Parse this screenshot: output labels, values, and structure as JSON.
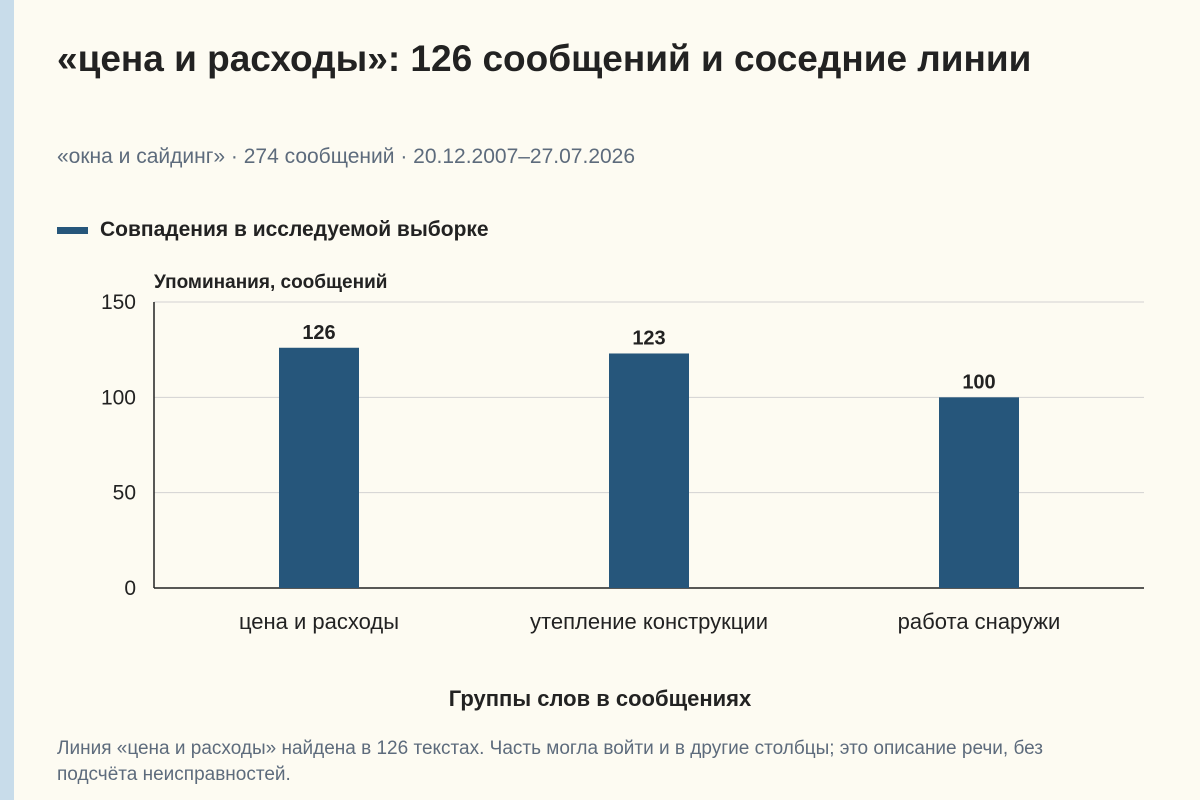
{
  "header": {
    "title": "«цена и расходы»: 126 сообщений и соседние линии",
    "subtitle": "«окна и сайдинг» · 274 сообщений · 20.12.2007–27.07.2026"
  },
  "colors": {
    "bar": "#26567b",
    "background": "#fdfbf2",
    "accent_strip": "#c8dcea"
  },
  "chart_data": {
    "type": "bar",
    "categories": [
      "цена и расходы",
      "утепление конструкции",
      "работа снаружи"
    ],
    "series": [
      {
        "name": "Совпадения в исследуемой выборке",
        "values": [
          126,
          123,
          100
        ]
      }
    ],
    "ylabel": "Упоминания, сообщений",
    "xlabel": "Группы слов в сообщениях",
    "ylim": [
      0,
      150
    ],
    "yticks": [
      0,
      50,
      100,
      150
    ],
    "grid": true,
    "legend": "top-left"
  },
  "note": "Линия «цена и расходы» найдена в 126 текстах. Часть могла войти и в другие столбцы; это описание речи, без подсчёта неисправностей."
}
